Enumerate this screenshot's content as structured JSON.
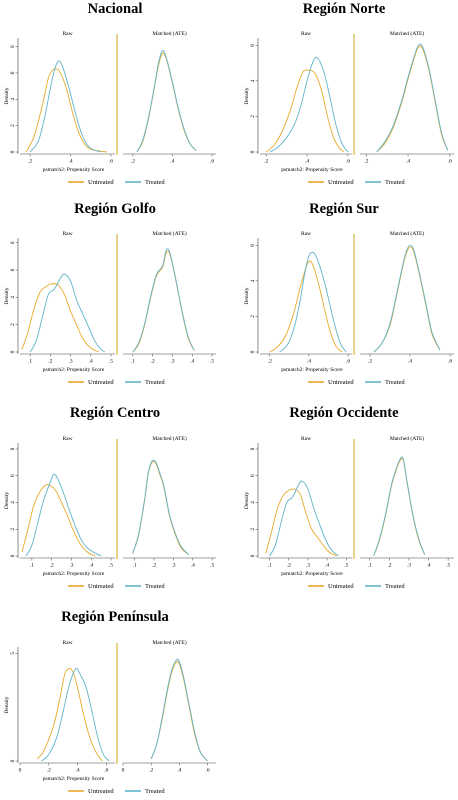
{
  "colors": {
    "untreated": "#e8a92a",
    "treated": "#5fb4cc",
    "axis": "#444444",
    "divider": "#d4b43c"
  },
  "labels": {
    "facet_left": "Raw",
    "facet_right": "Matched (ATE)",
    "ylabel": "Density",
    "xlabel": "psmatch2: Propensity Score",
    "legend_untreated": "Untreated",
    "legend_treated": "Treated"
  },
  "chart_data": [
    {
      "type": "line",
      "title": "Nacional",
      "xlim": [
        0.15,
        0.62
      ],
      "xticks": [
        ".2",
        ".4",
        ".6"
      ],
      "xtick_vals": [
        0.2,
        0.4,
        0.6
      ],
      "ylim": [
        0,
        8.5
      ],
      "yticks": [
        "0",
        "2",
        "4",
        "6",
        "8"
      ],
      "ytick_vals": [
        0,
        2,
        4,
        6,
        8
      ],
      "raw": [
        {
          "name": "Untreated",
          "x": [
            0.18,
            0.22,
            0.26,
            0.29,
            0.31,
            0.33,
            0.35,
            0.38,
            0.41,
            0.44,
            0.47,
            0.5,
            0.53,
            0.58
          ],
          "y": [
            0,
            1.2,
            3.5,
            5.6,
            6.2,
            6.3,
            6.0,
            4.8,
            3.0,
            1.5,
            0.6,
            0.2,
            0.1,
            0
          ]
        },
        {
          "name": "Treated",
          "x": [
            0.2,
            0.24,
            0.27,
            0.3,
            0.32,
            0.34,
            0.36,
            0.39,
            0.42,
            0.45,
            0.48,
            0.51,
            0.55
          ],
          "y": [
            0,
            0.8,
            2.5,
            4.8,
            6.2,
            6.9,
            6.5,
            5.0,
            3.2,
            1.6,
            0.6,
            0.2,
            0
          ]
        }
      ],
      "matched": [
        {
          "name": "Untreated",
          "x": [
            0.22,
            0.25,
            0.28,
            0.31,
            0.33,
            0.35,
            0.37,
            0.4,
            0.43,
            0.46,
            0.49,
            0.52
          ],
          "y": [
            0,
            0.8,
            2.6,
            5.0,
            6.6,
            7.5,
            7.0,
            5.2,
            3.2,
            1.6,
            0.6,
            0.1
          ]
        },
        {
          "name": "Treated",
          "x": [
            0.22,
            0.25,
            0.28,
            0.31,
            0.33,
            0.35,
            0.37,
            0.4,
            0.43,
            0.46,
            0.49,
            0.52
          ],
          "y": [
            0,
            0.9,
            2.7,
            5.1,
            6.8,
            7.7,
            7.1,
            5.3,
            3.3,
            1.7,
            0.6,
            0.1
          ]
        }
      ]
    },
    {
      "type": "line",
      "title": "Región Norte",
      "xlim": [
        0.17,
        0.62
      ],
      "xticks": [
        ".2",
        ".4",
        ".6"
      ],
      "xtick_vals": [
        0.2,
        0.4,
        0.6
      ],
      "ylim": [
        0,
        6.3
      ],
      "yticks": [
        "0",
        "2",
        "4",
        "6"
      ],
      "ytick_vals": [
        0,
        2,
        4,
        6
      ],
      "raw": [
        {
          "name": "Untreated",
          "x": [
            0.2,
            0.24,
            0.28,
            0.32,
            0.35,
            0.38,
            0.41,
            0.44,
            0.47,
            0.5,
            0.53,
            0.56,
            0.58
          ],
          "y": [
            0,
            0.4,
            1.2,
            2.4,
            3.6,
            4.5,
            4.6,
            4.4,
            3.5,
            2.0,
            0.8,
            0.2,
            0
          ]
        },
        {
          "name": "Treated",
          "x": [
            0.22,
            0.26,
            0.3,
            0.34,
            0.37,
            0.4,
            0.43,
            0.45,
            0.48,
            0.51,
            0.54,
            0.57,
            0.6
          ],
          "y": [
            0,
            0.3,
            0.8,
            1.6,
            2.6,
            4.0,
            5.1,
            5.3,
            4.6,
            3.2,
            1.6,
            0.5,
            0
          ]
        }
      ],
      "matched": [
        {
          "name": "Untreated",
          "x": [
            0.25,
            0.29,
            0.33,
            0.37,
            0.4,
            0.43,
            0.45,
            0.47,
            0.5,
            0.53,
            0.56,
            0.59
          ],
          "y": [
            0,
            0.5,
            1.4,
            2.8,
            4.1,
            5.3,
            5.9,
            5.8,
            4.6,
            2.8,
            1.0,
            0.1
          ]
        },
        {
          "name": "Treated",
          "x": [
            0.25,
            0.29,
            0.33,
            0.37,
            0.4,
            0.43,
            0.45,
            0.47,
            0.5,
            0.53,
            0.56,
            0.59
          ],
          "y": [
            0,
            0.6,
            1.5,
            2.9,
            4.2,
            5.4,
            6.0,
            5.9,
            4.7,
            2.9,
            1.1,
            0.1
          ]
        }
      ]
    },
    {
      "type": "line",
      "title": "Región Golfo",
      "xlim": [
        0.05,
        0.52
      ],
      "xticks": [
        ".1",
        ".2",
        ".3",
        ".4",
        ".5"
      ],
      "xtick_vals": [
        0.1,
        0.2,
        0.3,
        0.4,
        0.5
      ],
      "ylim": [
        0,
        8.2
      ],
      "yticks": [
        "0",
        "2",
        "4",
        "6",
        "8"
      ],
      "ytick_vals": [
        0,
        2,
        4,
        6,
        8
      ],
      "raw": [
        {
          "name": "Untreated",
          "x": [
            0.06,
            0.09,
            0.12,
            0.15,
            0.18,
            0.21,
            0.24,
            0.27,
            0.3,
            0.33,
            0.36,
            0.4,
            0.44
          ],
          "y": [
            0.2,
            1.5,
            3.2,
            4.4,
            4.8,
            5.0,
            4.9,
            4.2,
            3.0,
            2.0,
            1.0,
            0.3,
            0
          ]
        },
        {
          "name": "Treated",
          "x": [
            0.1,
            0.13,
            0.16,
            0.19,
            0.22,
            0.25,
            0.27,
            0.3,
            0.33,
            0.36,
            0.39,
            0.42,
            0.45,
            0.47
          ],
          "y": [
            0,
            0.8,
            2.5,
            4.2,
            4.6,
            5.4,
            5.7,
            5.2,
            3.8,
            2.8,
            1.8,
            0.8,
            0.2,
            0
          ]
        }
      ],
      "matched": [
        {
          "name": "Untreated",
          "x": [
            0.1,
            0.13,
            0.16,
            0.19,
            0.22,
            0.25,
            0.27,
            0.29,
            0.32,
            0.35,
            0.38,
            0.41
          ],
          "y": [
            0,
            0.6,
            2.0,
            4.0,
            5.6,
            6.2,
            7.3,
            7.0,
            5.0,
            2.8,
            1.0,
            0.1
          ]
        },
        {
          "name": "Treated",
          "x": [
            0.1,
            0.13,
            0.16,
            0.19,
            0.22,
            0.25,
            0.27,
            0.29,
            0.32,
            0.35,
            0.38,
            0.41
          ],
          "y": [
            0,
            0.7,
            2.1,
            4.1,
            5.7,
            6.3,
            7.5,
            7.1,
            5.1,
            2.9,
            1.1,
            0.1
          ]
        }
      ]
    },
    {
      "type": "line",
      "title": "Región Sur",
      "xlim": [
        0.15,
        0.62
      ],
      "xticks": [
        ".2",
        ".4",
        ".6"
      ],
      "xtick_vals": [
        0.2,
        0.4,
        0.6
      ],
      "ylim": [
        0,
        6.3
      ],
      "yticks": [
        "0",
        "2",
        "4",
        "6"
      ],
      "ytick_vals": [
        0,
        2,
        4,
        6
      ],
      "raw": [
        {
          "name": "Untreated",
          "x": [
            0.2,
            0.24,
            0.28,
            0.32,
            0.35,
            0.38,
            0.4,
            0.42,
            0.45,
            0.48,
            0.51,
            0.54,
            0.57
          ],
          "y": [
            0,
            0.3,
            0.9,
            2.1,
            3.4,
            4.6,
            5.1,
            4.9,
            3.8,
            2.4,
            1.1,
            0.3,
            0
          ]
        },
        {
          "name": "Treated",
          "x": [
            0.25,
            0.29,
            0.32,
            0.35,
            0.38,
            0.4,
            0.42,
            0.44,
            0.47,
            0.5,
            0.53,
            0.56,
            0.59
          ],
          "y": [
            0,
            0.4,
            1.2,
            2.6,
            4.5,
            5.4,
            5.6,
            5.3,
            4.3,
            3.0,
            1.6,
            0.5,
            0
          ]
        }
      ],
      "matched": [
        {
          "name": "Untreated",
          "x": [
            0.22,
            0.26,
            0.3,
            0.33,
            0.36,
            0.38,
            0.4,
            0.42,
            0.45,
            0.48,
            0.51,
            0.55
          ],
          "y": [
            0,
            0.5,
            1.5,
            3.0,
            4.6,
            5.5,
            5.9,
            5.6,
            4.2,
            2.6,
            1.0,
            0.1
          ]
        },
        {
          "name": "Treated",
          "x": [
            0.22,
            0.26,
            0.3,
            0.33,
            0.36,
            0.38,
            0.4,
            0.42,
            0.45,
            0.48,
            0.51,
            0.55
          ],
          "y": [
            0,
            0.5,
            1.6,
            3.1,
            4.7,
            5.6,
            6.0,
            5.7,
            4.3,
            2.7,
            1.1,
            0.1
          ]
        }
      ]
    },
    {
      "type": "line",
      "title": "Región Centro",
      "xlim": [
        0.04,
        0.52
      ],
      "xticks": [
        ".1",
        ".2",
        ".3",
        ".4",
        ".5"
      ],
      "xtick_vals": [
        0.1,
        0.2,
        0.3,
        0.4,
        0.5
      ],
      "ylim": [
        0,
        8.3
      ],
      "yticks": [
        "0",
        "2",
        "4",
        "6",
        "8"
      ],
      "ytick_vals": [
        0,
        2,
        4,
        6,
        8
      ],
      "raw": [
        {
          "name": "Untreated",
          "x": [
            0.05,
            0.08,
            0.11,
            0.14,
            0.17,
            0.19,
            0.22,
            0.25,
            0.28,
            0.31,
            0.34,
            0.38,
            0.42
          ],
          "y": [
            0.3,
            2.0,
            3.8,
            4.8,
            5.3,
            5.3,
            4.9,
            4.0,
            3.0,
            1.9,
            1.0,
            0.3,
            0
          ]
        },
        {
          "name": "Treated",
          "x": [
            0.07,
            0.1,
            0.13,
            0.16,
            0.19,
            0.21,
            0.23,
            0.26,
            0.29,
            0.32,
            0.35,
            0.38,
            0.41,
            0.45
          ],
          "y": [
            0,
            0.8,
            2.5,
            4.2,
            5.4,
            6.1,
            5.8,
            4.7,
            3.4,
            2.2,
            1.2,
            0.6,
            0.3,
            0
          ]
        }
      ],
      "matched": [
        {
          "name": "Untreated",
          "x": [
            0.09,
            0.12,
            0.15,
            0.17,
            0.19,
            0.21,
            0.23,
            0.25,
            0.28,
            0.31,
            0.34,
            0.38
          ],
          "y": [
            0.2,
            1.5,
            4.0,
            6.1,
            7.0,
            6.9,
            6.1,
            5.2,
            3.0,
            1.6,
            0.6,
            0.1
          ]
        },
        {
          "name": "Treated",
          "x": [
            0.09,
            0.12,
            0.15,
            0.17,
            0.19,
            0.21,
            0.23,
            0.25,
            0.28,
            0.31,
            0.34,
            0.38
          ],
          "y": [
            0.2,
            1.6,
            4.1,
            6.2,
            7.1,
            7.0,
            6.2,
            5.3,
            3.1,
            1.7,
            0.7,
            0.1
          ]
        }
      ]
    },
    {
      "type": "line",
      "title": "Región Occidente",
      "xlim": [
        0.05,
        0.53
      ],
      "xticks": [
        ".1",
        ".2",
        ".3",
        ".4",
        ".5"
      ],
      "xtick_vals": [
        0.1,
        0.2,
        0.3,
        0.4,
        0.5
      ],
      "ylim": [
        0,
        8.3
      ],
      "yticks": [
        "0",
        "2",
        "4",
        "6",
        "8"
      ],
      "ytick_vals": [
        0,
        2,
        4,
        6,
        8
      ],
      "raw": [
        {
          "name": "Untreated",
          "x": [
            0.08,
            0.11,
            0.14,
            0.17,
            0.2,
            0.23,
            0.26,
            0.29,
            0.32,
            0.35,
            0.38,
            0.41,
            0.45
          ],
          "y": [
            0.2,
            1.8,
            3.5,
            4.5,
            4.9,
            5.0,
            4.6,
            3.2,
            2.0,
            1.4,
            0.8,
            0.3,
            0
          ]
        },
        {
          "name": "Treated",
          "x": [
            0.1,
            0.13,
            0.16,
            0.19,
            0.22,
            0.25,
            0.27,
            0.3,
            0.33,
            0.36,
            0.39,
            0.42,
            0.46
          ],
          "y": [
            0,
            0.8,
            2.5,
            4.0,
            4.4,
            5.3,
            5.6,
            5.0,
            3.6,
            2.4,
            1.3,
            0.5,
            0
          ]
        }
      ],
      "matched": [
        {
          "name": "Untreated",
          "x": [
            0.12,
            0.15,
            0.18,
            0.21,
            0.23,
            0.25,
            0.27,
            0.29,
            0.32,
            0.35,
            0.38
          ],
          "y": [
            0,
            1.2,
            3.0,
            5.2,
            6.2,
            7.0,
            7.2,
            5.5,
            3.0,
            1.2,
            0.1
          ]
        },
        {
          "name": "Treated",
          "x": [
            0.12,
            0.15,
            0.18,
            0.21,
            0.23,
            0.25,
            0.27,
            0.29,
            0.32,
            0.35,
            0.38
          ],
          "y": [
            0,
            1.3,
            3.1,
            5.3,
            6.3,
            7.1,
            7.3,
            5.6,
            3.1,
            1.3,
            0.1
          ]
        }
      ]
    },
    {
      "type": "line",
      "title": "Región Península",
      "xlim": [
        0,
        0.66
      ],
      "xticks": [
        "0",
        ".2",
        ".4",
        ".6"
      ],
      "xtick_vals": [
        0,
        0.2,
        0.4,
        0.6
      ],
      "ylim": [
        0,
        5.2
      ],
      "yticks": [
        "0",
        "5"
      ],
      "ytick_vals": [
        0,
        5
      ],
      "raw": [
        {
          "name": "Untreated",
          "x": [
            0.12,
            0.16,
            0.2,
            0.24,
            0.28,
            0.31,
            0.34,
            0.37,
            0.4,
            0.44,
            0.48,
            0.52,
            0.57
          ],
          "y": [
            0.1,
            0.4,
            1.0,
            1.8,
            3.0,
            4.0,
            4.3,
            4.1,
            3.4,
            2.2,
            1.2,
            0.5,
            0
          ]
        },
        {
          "name": "Treated",
          "x": [
            0.15,
            0.2,
            0.25,
            0.29,
            0.33,
            0.36,
            0.39,
            0.42,
            0.46,
            0.5,
            0.54,
            0.58,
            0.62
          ],
          "y": [
            0,
            0.3,
            1.0,
            2.0,
            3.2,
            3.9,
            4.3,
            4.0,
            3.4,
            2.3,
            1.1,
            0.3,
            0
          ]
        }
      ],
      "matched": [
        {
          "name": "Untreated",
          "x": [
            0.2,
            0.24,
            0.28,
            0.32,
            0.35,
            0.38,
            0.4,
            0.43,
            0.47,
            0.51,
            0.55,
            0.6
          ],
          "y": [
            0.1,
            0.8,
            2.0,
            3.4,
            4.2,
            4.6,
            4.5,
            3.8,
            2.5,
            1.2,
            0.4,
            0
          ]
        },
        {
          "name": "Treated",
          "x": [
            0.2,
            0.24,
            0.28,
            0.32,
            0.35,
            0.38,
            0.4,
            0.43,
            0.47,
            0.51,
            0.55,
            0.6
          ],
          "y": [
            0.1,
            0.8,
            2.1,
            3.5,
            4.3,
            4.7,
            4.6,
            3.9,
            2.6,
            1.3,
            0.4,
            0
          ]
        }
      ]
    }
  ]
}
